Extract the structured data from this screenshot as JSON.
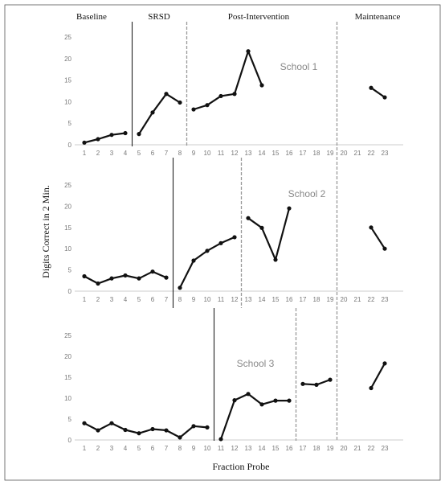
{
  "chart_data": {
    "type": "line",
    "title": "",
    "xlabel": "Fraction Probe",
    "ylabel": "Digits Correct in 2 Min.",
    "phases": [
      "Baseline",
      "SRSD",
      "Post-Intervention",
      "Maintenance"
    ],
    "x_range": [
      1,
      23
    ],
    "y_range": [
      0,
      25
    ],
    "y_ticks": [
      0,
      5,
      10,
      15,
      20,
      25
    ],
    "x_ticks": [
      1,
      2,
      3,
      4,
      5,
      6,
      7,
      8,
      9,
      10,
      11,
      12,
      13,
      14,
      15,
      16,
      17,
      18,
      19,
      20,
      21,
      22,
      23
    ],
    "panels": [
      {
        "name": "School 1",
        "phase_change_after": [
          4.5,
          8.5,
          19.5
        ],
        "segments": [
          {
            "x": [
              1,
              2,
              3,
              4
            ],
            "y": [
              0.5,
              1.3,
              2.3,
              2.7
            ]
          },
          {
            "x": [
              5,
              6,
              7,
              8
            ],
            "y": [
              2.5,
              7.5,
              11.8,
              9.8
            ]
          },
          {
            "x": [
              9,
              10,
              11,
              12,
              13,
              14
            ],
            "y": [
              8.2,
              9.2,
              11.3,
              11.8,
              21.7,
              13.8
            ]
          },
          {
            "x": [
              22,
              23
            ],
            "y": [
              13.2,
              11.0
            ]
          }
        ]
      },
      {
        "name": "School 2",
        "phase_change_after": [
          7.5,
          12.5,
          19.5
        ],
        "segments": [
          {
            "x": [
              1,
              2,
              3,
              4,
              5,
              6,
              7
            ],
            "y": [
              3.5,
              1.8,
              3.0,
              3.7,
              3.0,
              4.6,
              3.2
            ]
          },
          {
            "x": [
              8,
              9,
              10,
              11,
              12
            ],
            "y": [
              0.8,
              7.2,
              9.5,
              11.3,
              12.7
            ]
          },
          {
            "x": [
              13,
              14,
              15,
              16
            ],
            "y": [
              17.2,
              14.9,
              7.4,
              19.5
            ]
          },
          {
            "x": [
              22,
              23
            ],
            "y": [
              15.0,
              10.0
            ]
          }
        ]
      },
      {
        "name": "School 3",
        "phase_change_after": [
          10.5,
          16.5,
          19.5
        ],
        "segments": [
          {
            "x": [
              1,
              2,
              3,
              4,
              5,
              6,
              7,
              8,
              9,
              10
            ],
            "y": [
              4.0,
              2.3,
              4.0,
              2.4,
              1.6,
              2.6,
              2.3,
              0.6,
              3.3,
              3.0
            ]
          },
          {
            "x": [
              11,
              12,
              13,
              14,
              15,
              16
            ],
            "y": [
              0.2,
              9.5,
              11.0,
              8.5,
              9.4,
              9.4
            ]
          },
          {
            "x": [
              17,
              18,
              19
            ],
            "y": [
              13.4,
              13.2,
              14.4
            ]
          },
          {
            "x": [
              22,
              23
            ],
            "y": [
              12.4,
              18.3
            ]
          }
        ]
      }
    ]
  }
}
